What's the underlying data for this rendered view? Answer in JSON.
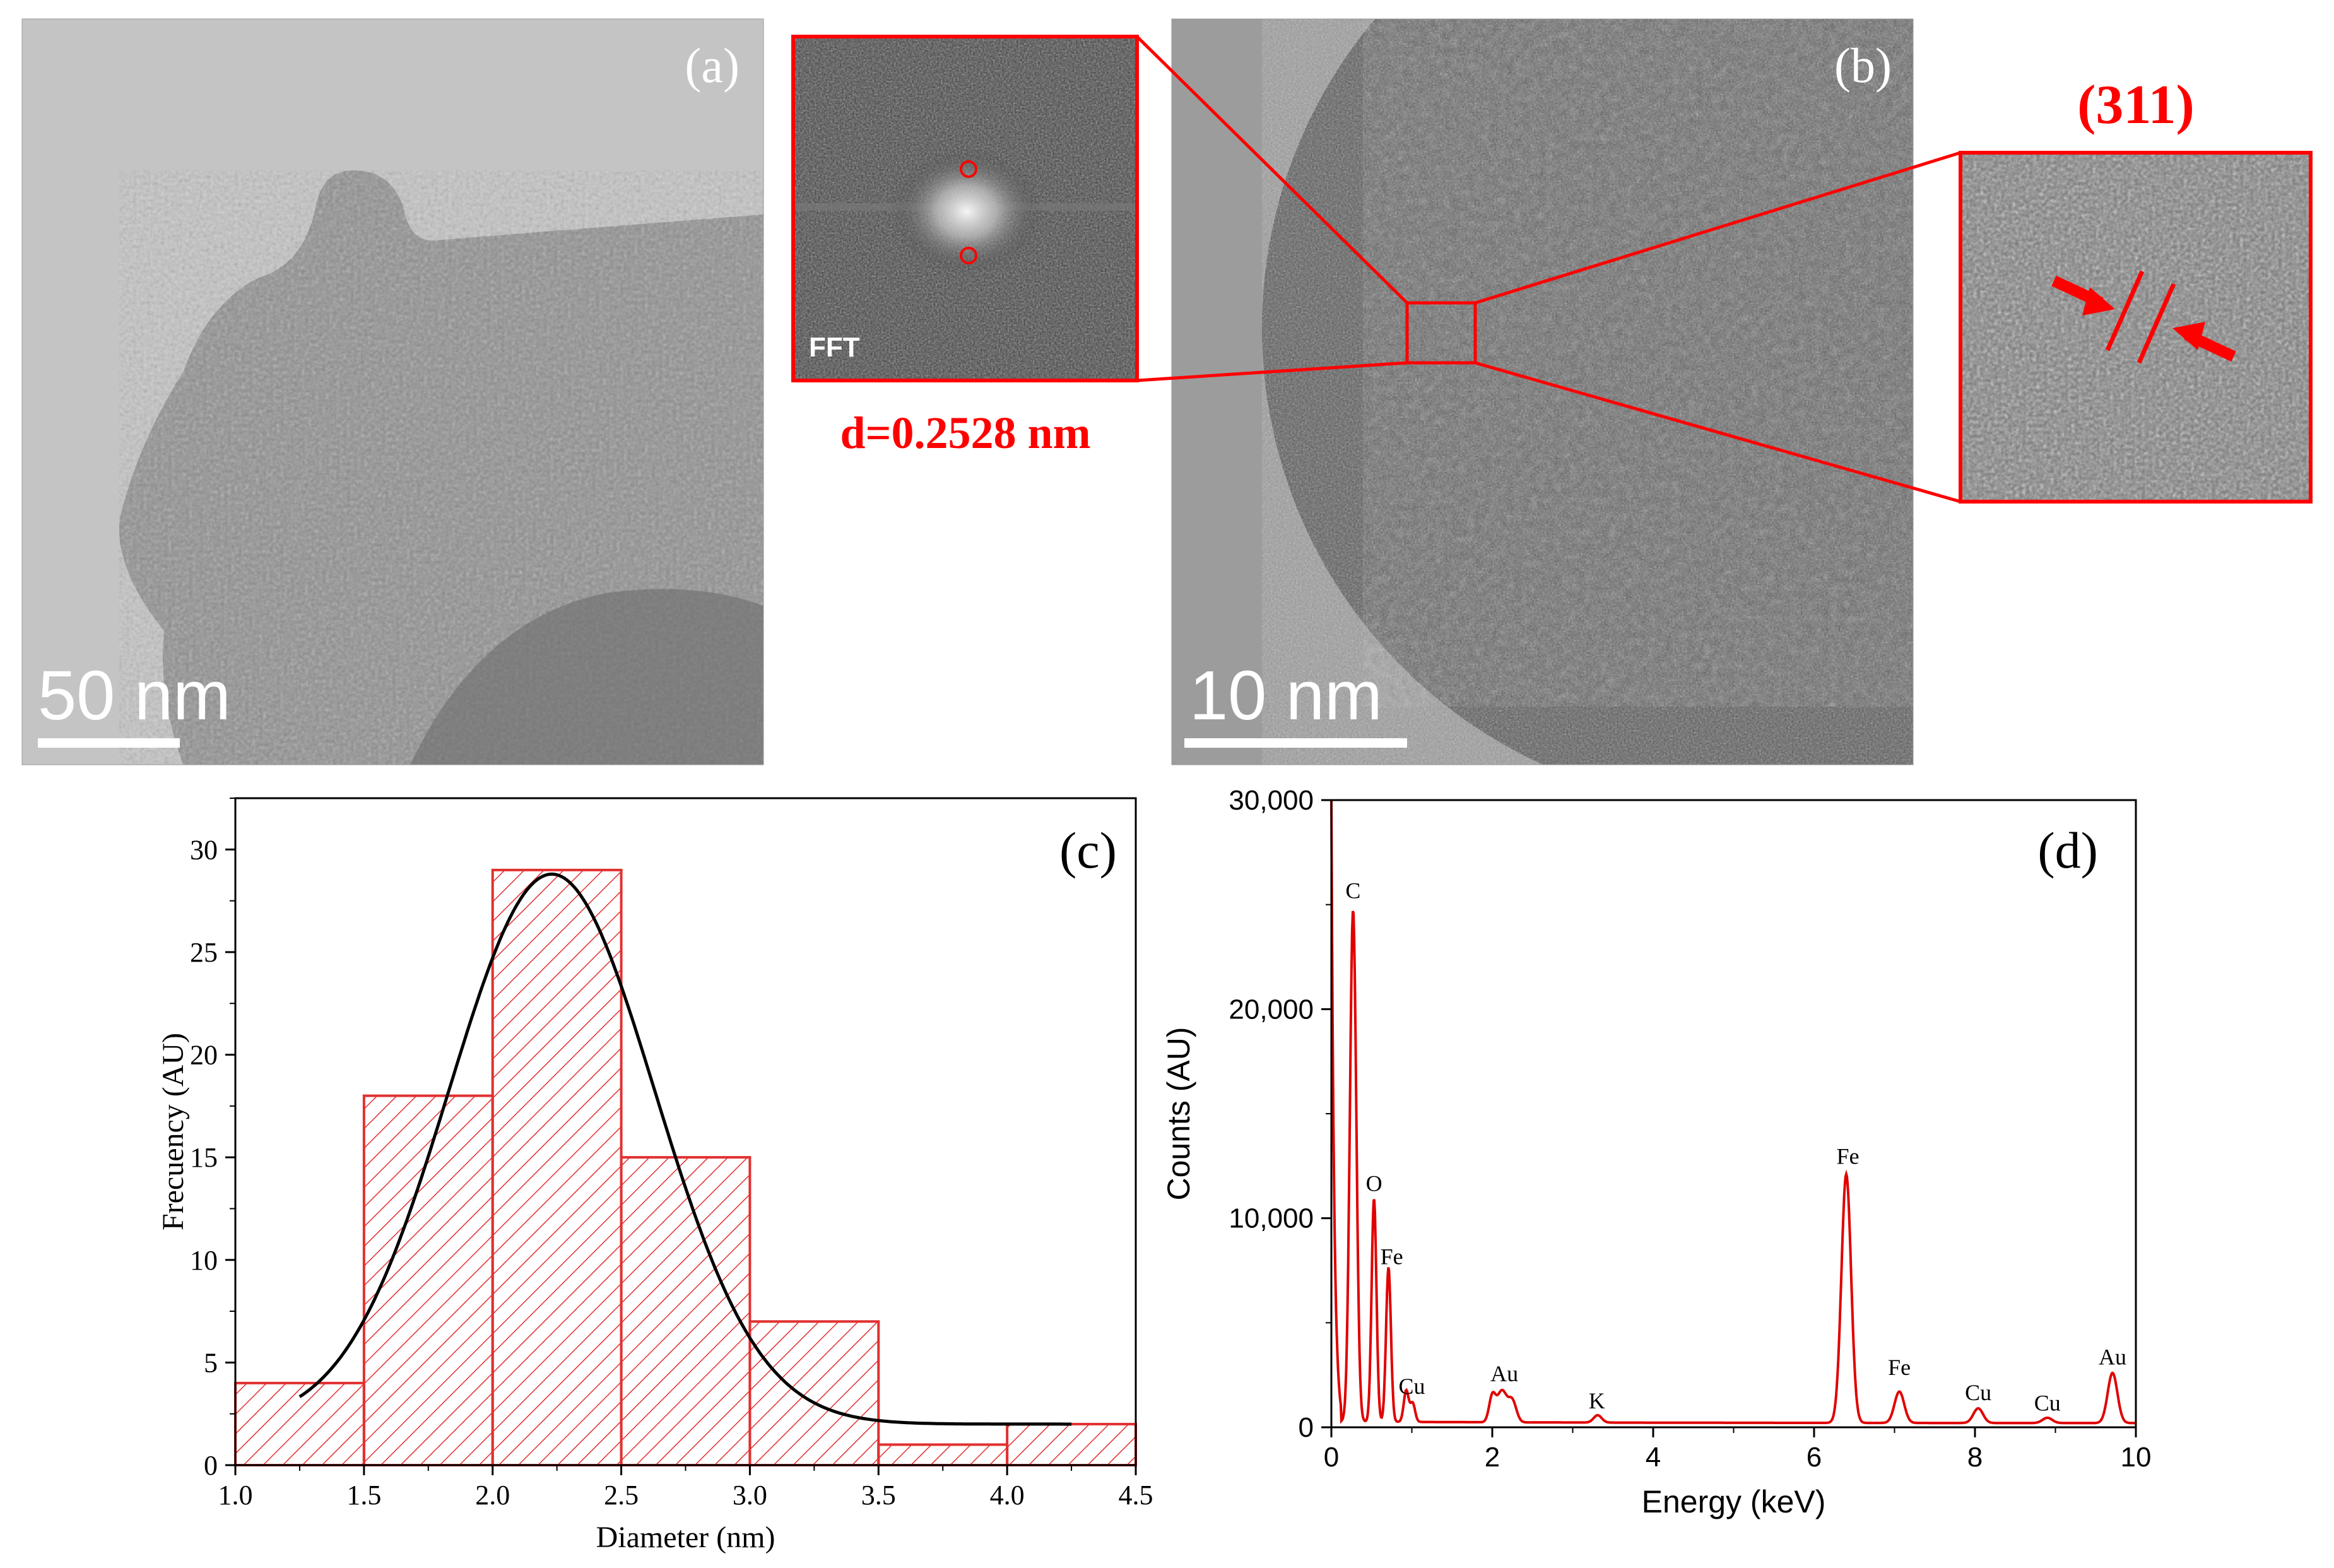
{
  "panels": {
    "a": {
      "label": "(a)",
      "scalebar": "50 nm"
    },
    "fft": {
      "label": "FFT",
      "d_spacing": "d=0.2528 nm"
    },
    "b": {
      "label": "(b)",
      "scalebar": "10 nm"
    },
    "zoom": {
      "plane": "(311)"
    },
    "c": {
      "label": "(c)"
    },
    "d": {
      "label": "(d)"
    }
  },
  "colors": {
    "accent": "#ff0000",
    "fit": "#000000"
  },
  "chart_data": [
    {
      "panel": "c",
      "type": "bar",
      "title": "",
      "xlabel": "Diameter (nm)",
      "ylabel": "Frecuency (AU)",
      "xlim": [
        1.0,
        4.5
      ],
      "ylim": [
        0,
        32.5
      ],
      "xticks": [
        "1.0",
        "1.5",
        "2.0",
        "2.5",
        "3.0",
        "3.5",
        "4.0",
        "4.5"
      ],
      "yticks": [
        "0",
        "5",
        "10",
        "15",
        "20",
        "25",
        "30"
      ],
      "bins": [
        {
          "start": 1.0,
          "end": 1.5,
          "value": 4
        },
        {
          "start": 1.5,
          "end": 2.0,
          "value": 18
        },
        {
          "start": 2.0,
          "end": 2.5,
          "value": 29
        },
        {
          "start": 2.5,
          "end": 3.0,
          "value": 15
        },
        {
          "start": 3.0,
          "end": 3.5,
          "value": 7
        },
        {
          "start": 3.5,
          "end": 4.0,
          "value": 1
        },
        {
          "start": 4.0,
          "end": 4.5,
          "value": 2
        }
      ],
      "fit": {
        "type": "gaussian",
        "x_range": [
          1.25,
          4.25
        ],
        "center": 2.23,
        "sigma": 0.4,
        "amplitude": 26.8,
        "offset": 2.0
      },
      "grid": false,
      "hatch": "diagonal"
    },
    {
      "panel": "d",
      "type": "line",
      "title": "",
      "xlabel": "Energy (keV)",
      "ylabel": "Counts (AU)",
      "xlim": [
        0,
        10
      ],
      "ylim": [
        0,
        30000
      ],
      "xticks": [
        "0",
        "2",
        "4",
        "6",
        "8",
        "10"
      ],
      "yticks": [
        "0",
        "10,000",
        "20,000",
        "30,000"
      ],
      "peaks": [
        {
          "label": "C",
          "energy": 0.27,
          "counts": 24500,
          "width": 0.04
        },
        {
          "label": "O",
          "energy": 0.53,
          "counts": 10700,
          "width": 0.03
        },
        {
          "label": "Fe",
          "energy": 0.71,
          "counts": 7400,
          "width": 0.03
        },
        {
          "label": "Cu",
          "energy": 0.93,
          "counts": 1500,
          "width": 0.03
        },
        {
          "label": "",
          "energy": 1.01,
          "counts": 900,
          "width": 0.03
        },
        {
          "label": "Au",
          "energy": 2.12,
          "counts": 1500,
          "width": 0.06
        },
        {
          "label": "",
          "energy": 2.0,
          "counts": 1200,
          "width": 0.04
        },
        {
          "label": "",
          "energy": 2.25,
          "counts": 1000,
          "width": 0.05
        },
        {
          "label": "K",
          "energy": 3.31,
          "counts": 350,
          "width": 0.05
        },
        {
          "label": "Fe",
          "energy": 6.4,
          "counts": 11900,
          "width": 0.06
        },
        {
          "label": "Fe",
          "energy": 7.06,
          "counts": 1500,
          "width": 0.06
        },
        {
          "label": "Cu",
          "energy": 8.04,
          "counts": 700,
          "width": 0.06
        },
        {
          "label": "Cu",
          "energy": 8.9,
          "counts": 250,
          "width": 0.06
        },
        {
          "label": "Au",
          "energy": 9.71,
          "counts": 2400,
          "width": 0.06
        }
      ],
      "label_positions": [
        {
          "text": "C",
          "energy": 0.27,
          "counts": 25300
        },
        {
          "text": "O",
          "energy": 0.53,
          "counts": 11300
        },
        {
          "text": "Fe",
          "energy": 0.75,
          "counts": 7800
        },
        {
          "text": "Cu",
          "energy": 1.0,
          "counts": 1600
        },
        {
          "text": "Au",
          "energy": 2.15,
          "counts": 2200
        },
        {
          "text": "K",
          "energy": 3.3,
          "counts": 900
        },
        {
          "text": "Fe",
          "energy": 6.42,
          "counts": 12600
        },
        {
          "text": "Fe",
          "energy": 7.06,
          "counts": 2500
        },
        {
          "text": "Cu",
          "energy": 8.04,
          "counts": 1300
        },
        {
          "text": "Cu",
          "energy": 8.9,
          "counts": 800
        },
        {
          "text": "Au",
          "energy": 9.71,
          "counts": 3000
        }
      ],
      "grid": false,
      "line_color": "#e00000"
    }
  ]
}
